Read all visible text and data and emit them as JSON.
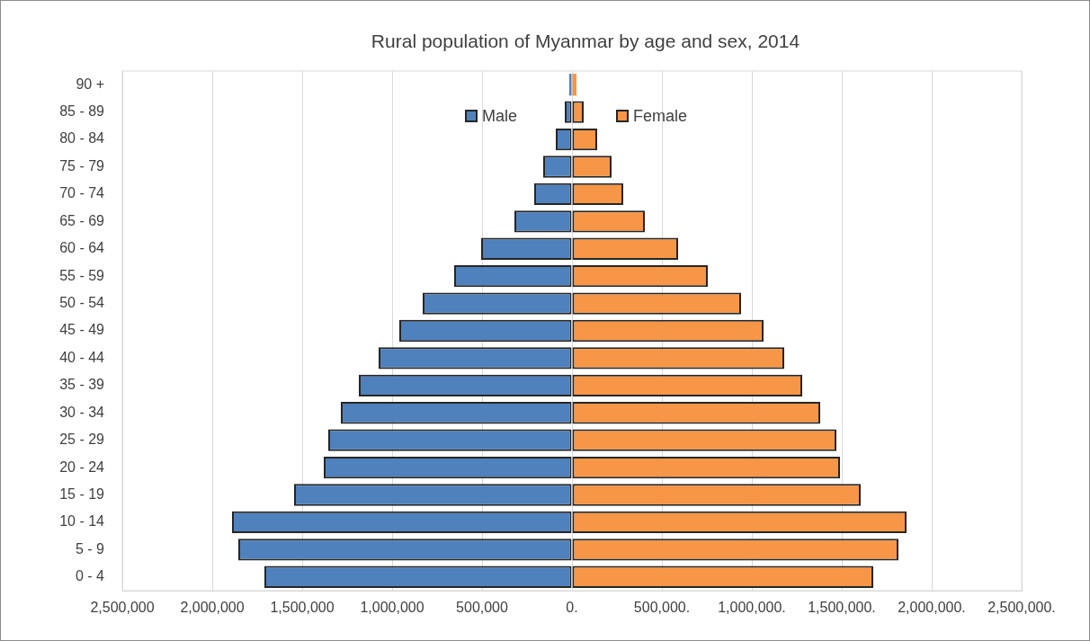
{
  "chart_data": {
    "type": "bar",
    "orientation": "horizontal",
    "stacked": true,
    "title": "Rural population of Myanmar by age and sex, 2014",
    "categories": [
      "90 +",
      "85 - 89",
      "80 - 84",
      "75 - 79",
      "70 - 74",
      "65 - 69",
      "60 - 64",
      "55 - 59",
      "50 - 54",
      "45 - 49",
      "40 - 44",
      "35 - 39",
      "30 - 34",
      "25 - 29",
      "20 - 24",
      "15 - 19",
      "10 - 14",
      "5 - 9",
      "0 - 4"
    ],
    "series": [
      {
        "name": "Male",
        "color": "#4f81bd",
        "values": [
          -15000,
          -40000,
          -90000,
          -160000,
          -210000,
          -320000,
          -505000,
          -655000,
          -830000,
          -960000,
          -1075000,
          -1185000,
          -1285000,
          -1355000,
          -1380000,
          -1545000,
          -1890000,
          -1855000,
          -1710000
        ]
      },
      {
        "name": "Female",
        "color": "#f79646",
        "values": [
          25000,
          65000,
          140000,
          220000,
          285000,
          405000,
          590000,
          755000,
          940000,
          1065000,
          1180000,
          1280000,
          1380000,
          1470000,
          1490000,
          1605000,
          1860000,
          1815000,
          1675000
        ]
      }
    ],
    "xlim": [
      -2500000,
      2500000
    ],
    "xticks": [
      {
        "value": -2500000,
        "label": "2,500,000"
      },
      {
        "value": -2000000,
        "label": "2,000,000"
      },
      {
        "value": -1500000,
        "label": "1,500,000"
      },
      {
        "value": -1000000,
        "label": "1,000,000"
      },
      {
        "value": -500000,
        "label": "500,000"
      },
      {
        "value": 0,
        "label": "0."
      },
      {
        "value": 500000,
        "label": "500,000."
      },
      {
        "value": 1000000,
        "label": "1,000,000."
      },
      {
        "value": 1500000,
        "label": "1,500,000."
      },
      {
        "value": 2000000,
        "label": "2,000,000."
      },
      {
        "value": 2500000,
        "label": "2,500,000."
      }
    ],
    "grid": "x",
    "legend": "top"
  }
}
